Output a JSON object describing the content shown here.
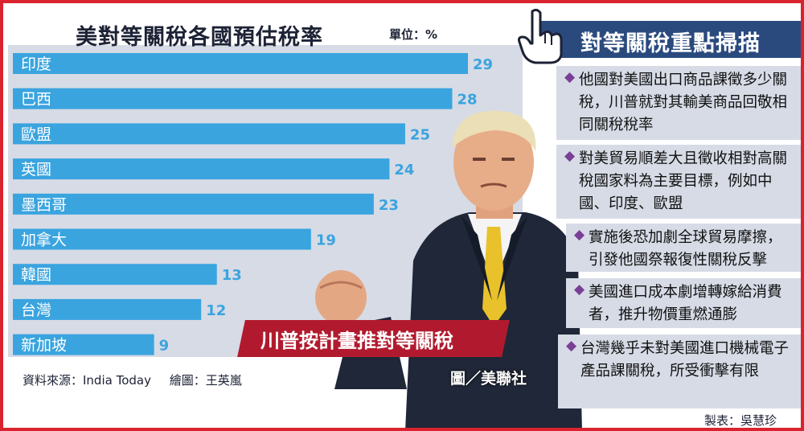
{
  "chart_title": "美對等關稅各國預估稅率",
  "unit": "單位：%",
  "chart_data": {
    "type": "bar",
    "orientation": "horizontal",
    "title": "美對等關稅各國預估稅率",
    "categories": [
      "印度",
      "巴西",
      "歐盟",
      "英國",
      "墨西哥",
      "加拿大",
      "韓國",
      "台灣",
      "新加坡"
    ],
    "values": [
      29,
      28,
      25,
      24,
      23,
      19,
      13,
      12,
      9
    ],
    "xlim": [
      0,
      30
    ],
    "grid": false,
    "bar_color": "#3aa4df",
    "label_color": "#3aa4df"
  },
  "source": {
    "source_text": "資料來源：India Today",
    "drawn_by": "繪圖：王英嵐"
  },
  "photo": {
    "caption": "川普按計畫推對等關稅",
    "credit": "圖／美聯社"
  },
  "right_panel": {
    "title": "對等關稅重點掃描",
    "bullet": "◆",
    "points": [
      "他國對美國出口商品課徵多少關稅，川普就對其輸美商品回敬相同關稅稅率",
      "對美貿易順差大且徵收相對高關稅國家料為主要目標，例如中國、印度、歐盟",
      "實施後恐加劇全球貿易摩擦，引發他國祭報復性關稅反擊",
      "美國進口成本劇增轉嫁給消費者，推升物價重燃通膨",
      "台灣幾乎未對美國進口機械電子產品課關稅，所受衝擊有限"
    ]
  },
  "maker": "製表：吳慧珍",
  "colors": {
    "frame": "#d9232e",
    "title_bar": "#2a4a7e",
    "panel_bg": "#d6dbe6",
    "bullet": "#7a3f96",
    "caption_bg": "#b11a2e"
  }
}
